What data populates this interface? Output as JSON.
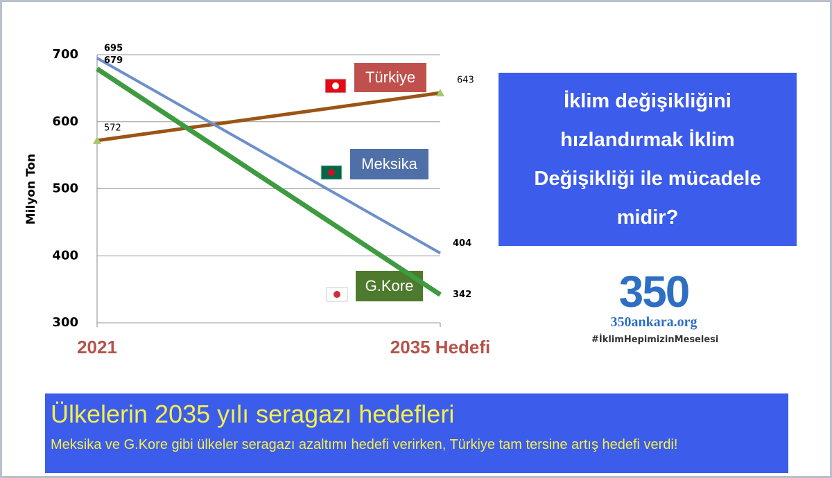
{
  "chart_data": {
    "type": "line",
    "ylabel": "Milyon Ton",
    "categories": [
      "2021",
      "2035 Hedefi"
    ],
    "ylim": [
      300,
      700
    ],
    "yticks": [
      300,
      400,
      500,
      600,
      700
    ],
    "grid": true,
    "series": [
      {
        "name": "Türkiye",
        "color": "#9a5516",
        "box_color": "#c0504d",
        "values": [
          572,
          643
        ]
      },
      {
        "name": "Meksika",
        "color": "#6d8fca",
        "box_color": "#4f6fa8",
        "values": [
          695,
          404
        ]
      },
      {
        "name": "G.Kore",
        "color": "#3e9b40",
        "box_color": "#4d7a2c",
        "values": [
          679,
          342
        ]
      }
    ]
  },
  "question": [
    "İklim değişikliğini",
    "hızlandırmak İklim",
    "Değişikliği ile mücadele",
    "midir?"
  ],
  "logo": {
    "number": "350",
    "site": "350ankara.org",
    "hashtag": "#İklimHepimizinMeselesi"
  },
  "footer": {
    "title": "Ülkelerin 2035 yılı seragazı hedefleri",
    "subtitle": "Meksika ve G.Kore gibi ülkeler seragazı azaltımı hedefi verirken, Türkiye tam tersine artış hedefi verdi!"
  }
}
